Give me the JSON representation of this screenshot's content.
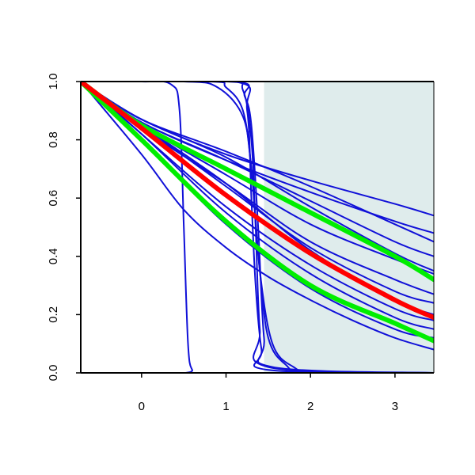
{
  "chart_data": {
    "type": "line",
    "title": "",
    "xlabel": "",
    "ylabel": "",
    "xlim": [
      -0.72,
      3.46
    ],
    "ylim": [
      0.0,
      1.0
    ],
    "x_ticks": [
      "0",
      "1",
      "2",
      "3"
    ],
    "y_ticks": [
      "0.0",
      "0.2",
      "0.4",
      "0.6",
      "0.8",
      "1.0"
    ],
    "grid": false,
    "legend": "none",
    "shaded_region": {
      "x_from": 1.45,
      "x_to": 3.46,
      "color": "#dfecec"
    },
    "colors": {
      "blue": "#1010d8",
      "red": "#ff0000",
      "green": "#00ee00",
      "axis": "#000000"
    },
    "series": [
      {
        "color": "#1010d8",
        "width": "thin",
        "x": [
          -0.72,
          0.0,
          0.35,
          0.45,
          0.5,
          0.55,
          0.6,
          0.7,
          3.46
        ],
        "y": [
          1.0,
          1.0,
          0.99,
          0.9,
          0.5,
          0.1,
          0.01,
          0.0,
          0.0
        ]
      },
      {
        "color": "#1010d8",
        "width": "thin",
        "x": [
          -0.72,
          1.0,
          1.2,
          1.3,
          1.35,
          1.4,
          1.5,
          3.46
        ],
        "y": [
          1.0,
          1.0,
          0.97,
          0.8,
          0.5,
          0.15,
          0.02,
          0.0
        ]
      },
      {
        "color": "#1010d8",
        "width": "thin",
        "x": [
          -0.72,
          1.1,
          1.22,
          1.3,
          1.38,
          1.45,
          1.55,
          3.46
        ],
        "y": [
          1.0,
          1.0,
          0.95,
          0.85,
          0.5,
          0.12,
          0.02,
          0.0
        ]
      },
      {
        "color": "#1010d8",
        "width": "thin",
        "x": [
          -0.72,
          0.8,
          1.0,
          1.2,
          1.3,
          1.4,
          1.5,
          1.7,
          2.0,
          3.46
        ],
        "y": [
          1.0,
          1.0,
          0.98,
          0.9,
          0.7,
          0.35,
          0.12,
          0.03,
          0.0,
          0.0
        ]
      },
      {
        "color": "#1010d8",
        "width": "thin",
        "x": [
          -0.72,
          0.5,
          0.9,
          1.2,
          1.3,
          1.4,
          1.55,
          1.8,
          2.1,
          3.46
        ],
        "y": [
          1.0,
          1.0,
          0.98,
          0.88,
          0.7,
          0.35,
          0.1,
          0.02,
          0.0,
          0.0
        ]
      },
      {
        "color": "#1010d8",
        "width": "thin",
        "x": [
          -0.72,
          1.1,
          1.25,
          1.3,
          1.35,
          1.42,
          1.5,
          3.46
        ],
        "y": [
          1.0,
          1.0,
          0.9,
          0.6,
          0.3,
          0.08,
          0.01,
          0.0
        ]
      },
      {
        "color": "#1010d8",
        "width": "thin",
        "x": [
          -0.72,
          0.0,
          1.0,
          2.0,
          3.0,
          3.46
        ],
        "y": [
          1.0,
          0.87,
          0.75,
          0.66,
          0.58,
          0.54
        ]
      },
      {
        "color": "#1010d8",
        "width": "thin",
        "x": [
          -0.72,
          0.0,
          1.0,
          2.0,
          3.0,
          3.46
        ],
        "y": [
          1.0,
          0.86,
          0.73,
          0.62,
          0.52,
          0.48
        ]
      },
      {
        "color": "#1010d8",
        "width": "thin",
        "x": [
          -0.72,
          0.0,
          1.0,
          2.0,
          3.0,
          3.46
        ],
        "y": [
          1.0,
          0.87,
          0.76,
          0.64,
          0.51,
          0.45
        ]
      },
      {
        "color": "#1010d8",
        "width": "thin",
        "x": [
          -0.72,
          0.0,
          1.0,
          2.0,
          3.0,
          3.46
        ],
        "y": [
          1.0,
          0.86,
          0.73,
          0.59,
          0.45,
          0.4
        ]
      },
      {
        "color": "#1010d8",
        "width": "thin",
        "x": [
          -0.72,
          0.0,
          1.0,
          2.0,
          3.0,
          3.46
        ],
        "y": [
          1.0,
          0.87,
          0.74,
          0.57,
          0.41,
          0.35
        ]
      },
      {
        "color": "#1010d8",
        "width": "thin",
        "x": [
          -0.72,
          0.0,
          1.0,
          2.0,
          3.0,
          3.46
        ],
        "y": [
          1.0,
          0.85,
          0.68,
          0.51,
          0.39,
          0.34
        ]
      },
      {
        "color": "#1010d8",
        "width": "thin",
        "x": [
          -0.72,
          0.0,
          1.0,
          2.0,
          3.0,
          3.46
        ],
        "y": [
          1.0,
          0.84,
          0.65,
          0.45,
          0.32,
          0.27
        ]
      },
      {
        "color": "#1010d8",
        "width": "thin",
        "x": [
          -0.72,
          0.0,
          1.0,
          2.0,
          3.0,
          3.46
        ],
        "y": [
          1.0,
          0.85,
          0.64,
          0.43,
          0.28,
          0.24
        ]
      },
      {
        "color": "#1010d8",
        "width": "thin",
        "x": [
          -0.72,
          0.0,
          1.0,
          2.0,
          3.0,
          3.46
        ],
        "y": [
          1.0,
          0.85,
          0.65,
          0.42,
          0.25,
          0.2
        ]
      },
      {
        "color": "#1010d8",
        "width": "thin",
        "x": [
          -0.72,
          0.0,
          1.0,
          2.0,
          3.0,
          3.46
        ],
        "y": [
          1.0,
          0.82,
          0.57,
          0.37,
          0.22,
          0.18
        ]
      },
      {
        "color": "#1010d8",
        "width": "thin",
        "x": [
          -0.72,
          0.0,
          1.0,
          2.0,
          3.0,
          3.46
        ],
        "y": [
          1.0,
          0.82,
          0.55,
          0.34,
          0.19,
          0.15
        ]
      },
      {
        "color": "#1010d8",
        "width": "thin",
        "x": [
          -0.72,
          0.0,
          1.0,
          2.0,
          3.0,
          3.46
        ],
        "y": [
          1.0,
          0.8,
          0.51,
          0.29,
          0.15,
          0.12
        ]
      },
      {
        "color": "#1010d8",
        "width": "thin",
        "x": [
          -0.72,
          0.0,
          0.5,
          1.0,
          1.5,
          2.0,
          2.5,
          3.0,
          3.46
        ],
        "y": [
          1.0,
          0.75,
          0.56,
          0.43,
          0.33,
          0.25,
          0.18,
          0.12,
          0.08
        ]
      },
      {
        "color": "#00ee00",
        "width": "thick",
        "x": [
          -0.72,
          0.0,
          1.0,
          2.0,
          3.0,
          3.46
        ],
        "y": [
          1.0,
          0.85,
          0.7,
          0.55,
          0.4,
          0.32
        ]
      },
      {
        "color": "#00ee00",
        "width": "thick",
        "x": [
          -0.72,
          0.0,
          1.0,
          2.0,
          3.0,
          3.46
        ],
        "y": [
          1.0,
          0.8,
          0.52,
          0.3,
          0.17,
          0.11
        ]
      },
      {
        "color": "#ff0000",
        "width": "thick",
        "x": [
          -0.72,
          0.0,
          1.0,
          2.0,
          3.0,
          3.46
        ],
        "y": [
          1.0,
          0.84,
          0.61,
          0.41,
          0.25,
          0.19
        ]
      }
    ]
  }
}
